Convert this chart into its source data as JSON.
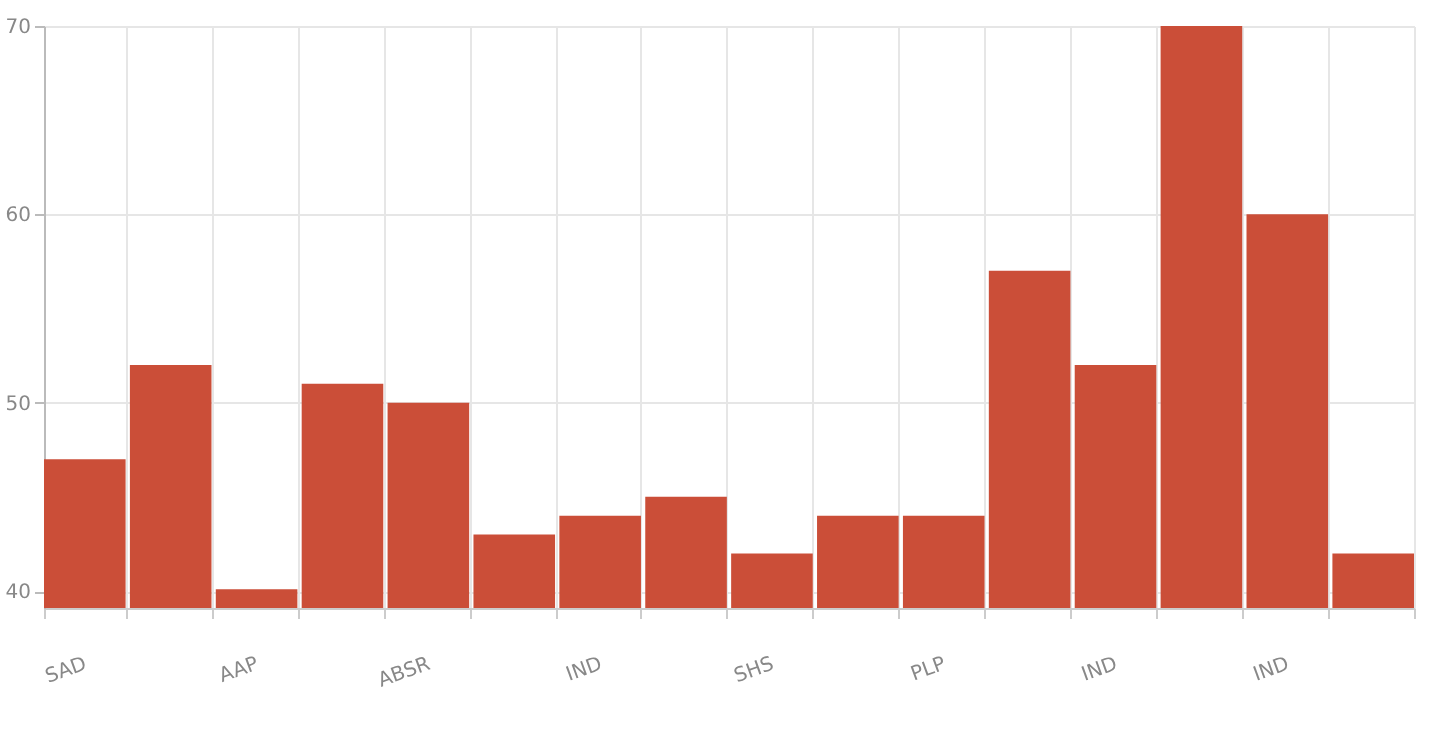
{
  "chart_data": {
    "type": "bar",
    "categories": [
      "SAD",
      null,
      "AAP",
      null,
      "ABSR",
      null,
      "IND",
      null,
      "SHS",
      null,
      "PLP",
      null,
      "IND",
      null,
      "IND",
      null
    ],
    "values": [
      47,
      52,
      40.1,
      51,
      50,
      43,
      44,
      45,
      42,
      44,
      44,
      57,
      52,
      70,
      60,
      42
    ],
    "color": "#cb4e38",
    "ylim": [
      39.1,
      70
    ],
    "yticks": [
      40,
      50,
      60,
      70
    ],
    "grid": true
  }
}
